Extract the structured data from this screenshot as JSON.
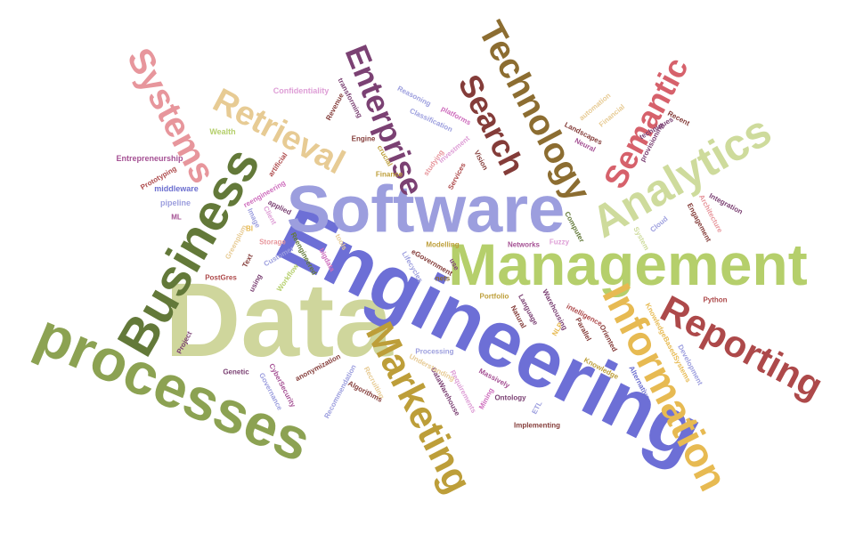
{
  "words": [
    {
      "text": "Data",
      "color": "#cfd69c"
    },
    {
      "text": "Engineering",
      "color": "#6d6fd6"
    },
    {
      "text": "Software",
      "color": "#9c9ede"
    },
    {
      "text": "Management",
      "color": "#b5cf6b"
    },
    {
      "text": "processes",
      "color": "#8ca252"
    },
    {
      "text": "Business",
      "color": "#637939"
    },
    {
      "text": "Analytics",
      "color": "#cedb9c"
    },
    {
      "text": "Information",
      "color": "#e7ba52"
    },
    {
      "text": "Marketing",
      "color": "#bd9e39"
    },
    {
      "text": "Reporting",
      "color": "#ad494a"
    },
    {
      "text": "Technology",
      "color": "#8c6d31"
    },
    {
      "text": "Systems",
      "color": "#e7969c"
    },
    {
      "text": "Retrieval",
      "color": "#e7cb94"
    },
    {
      "text": "Enterprise",
      "color": "#7b4173"
    },
    {
      "text": "Search",
      "color": "#843c39"
    },
    {
      "text": "Semantic",
      "color": "#d6616b"
    },
    {
      "text": "Confidentiality",
      "color": "#de9ed6"
    },
    {
      "text": "Wealth",
      "color": "#b5cf6b"
    },
    {
      "text": "Entrepreneurship",
      "color": "#a55194"
    },
    {
      "text": "Prototyping",
      "color": "#ad494a"
    },
    {
      "text": "middleware",
      "color": "#6b6ecf"
    },
    {
      "text": "pipeline",
      "color": "#9c9ede"
    },
    {
      "text": "ML",
      "color": "#a55194"
    },
    {
      "text": "Revenue",
      "color": "#843c39"
    },
    {
      "text": "transforming",
      "color": "#7b4173"
    },
    {
      "text": "Reasoning",
      "color": "#9c9ede"
    },
    {
      "text": "Classification",
      "color": "#9c9ede"
    },
    {
      "text": "platforms",
      "color": "#ce6dbd"
    },
    {
      "text": "Engine",
      "color": "#843c39"
    },
    {
      "text": "crucial",
      "color": "#bd9e39"
    },
    {
      "text": "Finance",
      "color": "#bd9e39"
    },
    {
      "text": "Investment",
      "color": "#de9ed6"
    },
    {
      "text": "studying",
      "color": "#e7969c"
    },
    {
      "text": "Vision",
      "color": "#843c39"
    },
    {
      "text": "Services",
      "color": "#ad494a"
    },
    {
      "text": "artificial",
      "color": "#ad494a"
    },
    {
      "text": "reengineering",
      "color": "#ce6dbd"
    },
    {
      "text": "Image",
      "color": "#9c9ede"
    },
    {
      "text": "Client",
      "color": "#de9ed6"
    },
    {
      "text": "applied",
      "color": "#7b4173"
    },
    {
      "text": "BI",
      "color": "#e7ba52"
    },
    {
      "text": "Storage",
      "color": "#e7969c"
    },
    {
      "text": "Greenplum",
      "color": "#e7cb94"
    },
    {
      "text": "Text",
      "color": "#843c39"
    },
    {
      "text": "Customer",
      "color": "#9c9ede"
    },
    {
      "text": "Workflow",
      "color": "#b5cf6b"
    },
    {
      "text": "Reengineered",
      "color": "#637939"
    },
    {
      "text": "PostGres",
      "color": "#ad494a"
    },
    {
      "text": "using",
      "color": "#7b4173"
    },
    {
      "text": "bigdata",
      "color": "#ce6dbd"
    },
    {
      "text": "tools",
      "color": "#e7cb94"
    },
    {
      "text": "Modelling",
      "color": "#bd9e39"
    },
    {
      "text": "Lifecycles",
      "color": "#9c9ede"
    },
    {
      "text": "eGovernment",
      "color": "#843c39"
    },
    {
      "text": "use",
      "color": "#7b4173"
    },
    {
      "text": "nets",
      "color": "#8c6d31"
    },
    {
      "text": "Networks",
      "color": "#a55194"
    },
    {
      "text": "Fuzzy",
      "color": "#de9ed6"
    },
    {
      "text": "Portfolio",
      "color": "#bd9e39"
    },
    {
      "text": "Computer",
      "color": "#637939"
    },
    {
      "text": "Cloud",
      "color": "#9c9ede"
    },
    {
      "text": "System",
      "color": "#cedb9c"
    },
    {
      "text": "Engagement",
      "color": "#843c39"
    },
    {
      "text": "Architecture",
      "color": "#e7969c"
    },
    {
      "text": "Integration",
      "color": "#7b4173"
    },
    {
      "text": "Landscapes",
      "color": "#843c39"
    },
    {
      "text": "Neural",
      "color": "#a55194"
    },
    {
      "text": "automation",
      "color": "#e7cb94"
    },
    {
      "text": "Financial",
      "color": "#e7cb94"
    },
    {
      "text": "provisioning",
      "color": "#7b4173"
    },
    {
      "text": "Recent",
      "color": "#843c39"
    },
    {
      "text": "techniques",
      "color": "#7b4173"
    },
    {
      "text": "Python",
      "color": "#ad494a"
    },
    {
      "text": "Development",
      "color": "#9c9ede"
    },
    {
      "text": "KnowledgeBasedSystems",
      "color": "#e7ba52"
    },
    {
      "text": "Knowledge",
      "color": "#bd9e39"
    },
    {
      "text": "Oriented",
      "color": "#843c39"
    },
    {
      "text": "intelligence",
      "color": "#ad494a"
    },
    {
      "text": "Parallel",
      "color": "#843c39"
    },
    {
      "text": "Alternative",
      "color": "#6b6ecf"
    },
    {
      "text": "Warehousing",
      "color": "#7b4173"
    },
    {
      "text": "Language",
      "color": "#7b4173"
    },
    {
      "text": "Natural",
      "color": "#843c39"
    },
    {
      "text": "NLP",
      "color": "#e7ba52"
    },
    {
      "text": "ETL",
      "color": "#9c9ede"
    },
    {
      "text": "Implementing",
      "color": "#843c39"
    },
    {
      "text": "Ontology",
      "color": "#7b4173"
    },
    {
      "text": "Massively",
      "color": "#a55194"
    },
    {
      "text": "Mining",
      "color": "#ce6dbd"
    },
    {
      "text": "Requirements",
      "color": "#de9ed6"
    },
    {
      "text": "DataWarehouse",
      "color": "#7b4173"
    },
    {
      "text": "Processing",
      "color": "#9c9ede"
    },
    {
      "text": "Understanding",
      "color": "#e7cb94"
    },
    {
      "text": "Recruiting",
      "color": "#e7cb94"
    },
    {
      "text": "Recommendation",
      "color": "#9c9ede"
    },
    {
      "text": "Algorithms",
      "color": "#843c39"
    },
    {
      "text": "anonymization",
      "color": "#843c39"
    },
    {
      "text": "Genetic",
      "color": "#7b4173"
    },
    {
      "text": "CyberSecurity",
      "color": "#a55194"
    },
    {
      "text": "Governance",
      "color": "#9c9ede"
    },
    {
      "text": "Project",
      "color": "#7b4173"
    }
  ]
}
